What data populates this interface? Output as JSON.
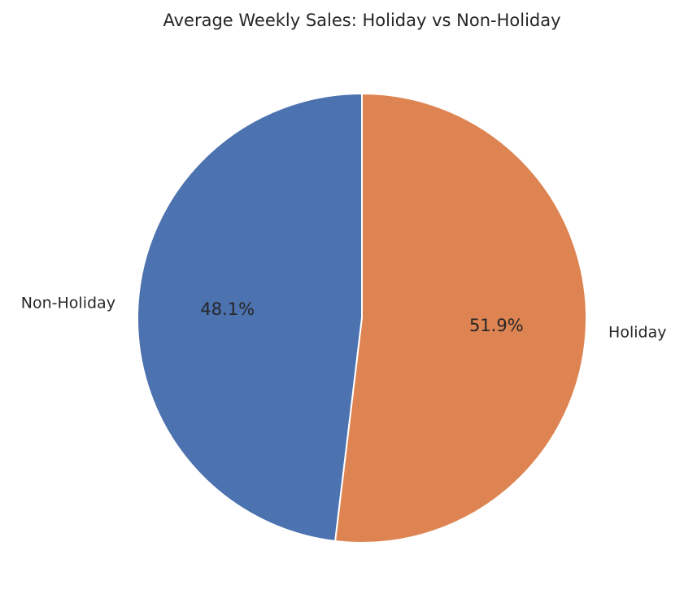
{
  "chart_data": {
    "type": "pie",
    "title": "Average Weekly Sales: Holiday vs Non-Holiday",
    "categories": [
      "Non-Holiday",
      "Holiday"
    ],
    "values": [
      48.1,
      51.9
    ],
    "value_labels": [
      "48.1%",
      "51.9%"
    ],
    "colors": [
      "#4c72b0",
      "#dd8452"
    ],
    "start_angle": "top (12 o'clock)",
    "direction": "Non-Holiday counterclockwise from top, Holiday clockwise from top",
    "legend": "none"
  }
}
